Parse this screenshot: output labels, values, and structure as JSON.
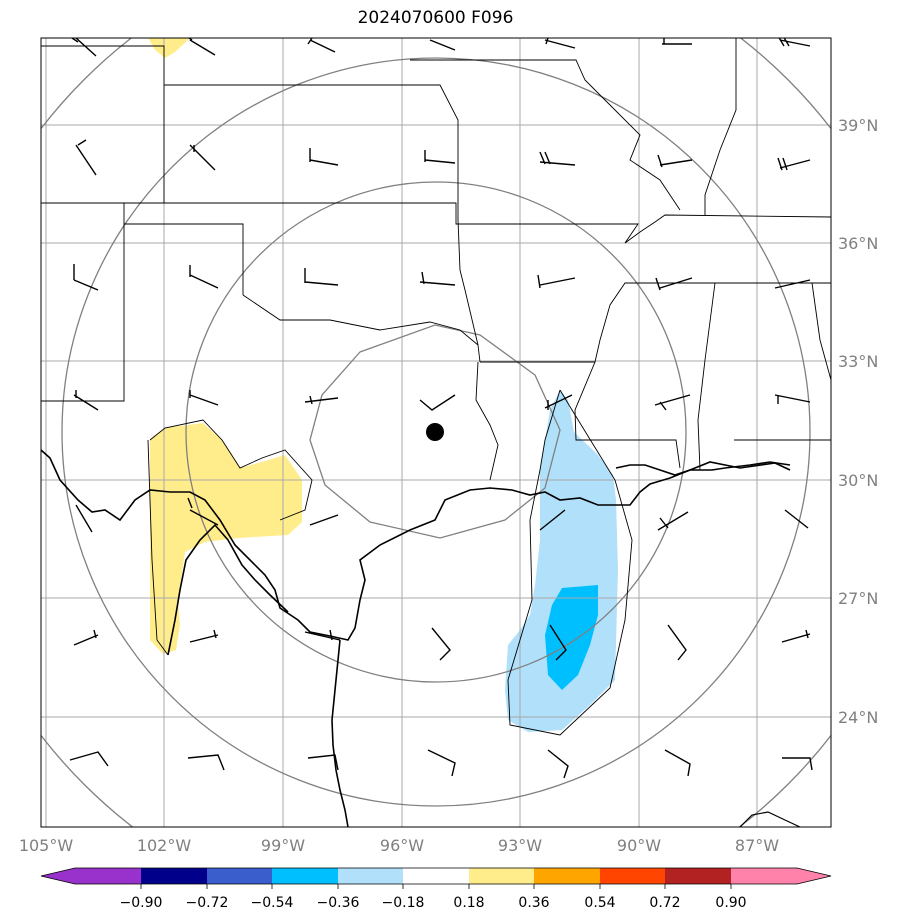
{
  "title": "2024070600 F096",
  "lat_labels": [
    "39°N",
    "36°N",
    "33°N",
    "30°N",
    "27°N",
    "24°N"
  ],
  "lon_labels": [
    "105°W",
    "102°W",
    "99°W",
    "96°W",
    "93°W",
    "90°W",
    "87°W"
  ],
  "colorbar": {
    "tick_labels": [
      "−0.90",
      "−0.72",
      "−0.54",
      "−0.36",
      "−0.18",
      "0.18",
      "0.36",
      "0.54",
      "0.72",
      "0.90"
    ],
    "colors": [
      "#9932cc",
      "#00008b",
      "#3a5fcd",
      "#00bfff",
      "#b0e0fa",
      "#ffffff",
      "#ffec8b",
      "#ffa500",
      "#ff4500",
      "#b22222",
      "#ff82ab"
    ]
  },
  "center_marker": {
    "lon": -95.2,
    "lat": 31.2
  },
  "colors": {
    "grid": "#a9a9a9",
    "range_rings": "#808080",
    "boundaries": "#000000"
  }
}
